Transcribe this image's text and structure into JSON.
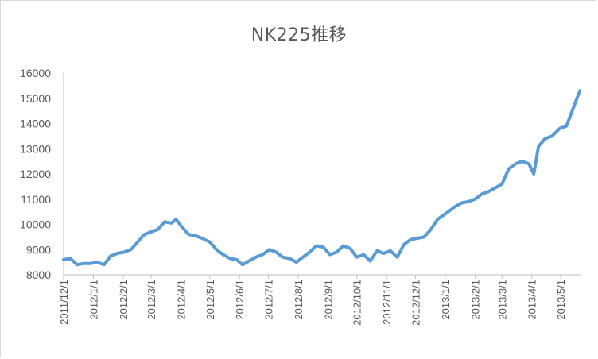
{
  "chart_data": {
    "type": "line",
    "title": "NK225推移",
    "xlabel": "",
    "ylabel": "",
    "ylim": [
      8000,
      16000
    ],
    "yticks": [
      "8000",
      "9000",
      "10000",
      "11000",
      "12000",
      "13000",
      "14000",
      "15000",
      "16000"
    ],
    "xticks": [
      "2011/12/1",
      "2012/1/1",
      "2012/2/1",
      "2012/3/1",
      "2012/4/1",
      "2012/5/1",
      "2012/6/1",
      "2012/7/1",
      "2012/8/1",
      "2012/9/1",
      "2012/10/1",
      "2012/11/1",
      "2012/12/1",
      "2013/1/1",
      "2013/2/1",
      "2013/3/1",
      "2013/4/1",
      "2013/5/1"
    ],
    "grid": false,
    "legend": "none",
    "line_color": "#5b9bd5",
    "series": [
      {
        "x": [
          "2011/12/1",
          "2011/12/8",
          "2011/12/15",
          "2011/12/22",
          "2011/12/29",
          "2012/1/5",
          "2012/1/12",
          "2012/1/19",
          "2012/1/26",
          "2012/2/2",
          "2012/2/9",
          "2012/2/16",
          "2012/2/23",
          "2012/3/1",
          "2012/3/8",
          "2012/3/15",
          "2012/3/22",
          "2012/3/27",
          "2012/4/2",
          "2012/4/9",
          "2012/4/16",
          "2012/4/23",
          "2012/5/1",
          "2012/5/8",
          "2012/5/15",
          "2012/5/22",
          "2012/5/29",
          "2012/6/4",
          "2012/6/11",
          "2012/6/18",
          "2012/6/25",
          "2012/7/2",
          "2012/7/9",
          "2012/7/16",
          "2012/7/23",
          "2012/7/30",
          "2012/8/6",
          "2012/8/13",
          "2012/8/20",
          "2012/8/27",
          "2012/9/3",
          "2012/9/10",
          "2012/9/17",
          "2012/9/24",
          "2012/10/1",
          "2012/10/8",
          "2012/10/15",
          "2012/10/22",
          "2012/10/29",
          "2012/11/5",
          "2012/11/12",
          "2012/11/19",
          "2012/11/26",
          "2012/12/3",
          "2012/12/10",
          "2012/12/17",
          "2012/12/24",
          "2013/1/4",
          "2013/1/11",
          "2013/1/18",
          "2013/1/25",
          "2013/2/1",
          "2013/2/8",
          "2013/2/15",
          "2013/2/22",
          "2013/3/1",
          "2013/3/8",
          "2013/3/15",
          "2013/3/22",
          "2013/3/29",
          "2013/4/3",
          "2013/4/8",
          "2013/4/15",
          "2013/4/22",
          "2013/4/30",
          "2013/5/7",
          "2013/5/14",
          "2013/5/21"
        ],
        "values": [
          8600,
          8650,
          8400,
          8450,
          8450,
          8500,
          8400,
          8750,
          8850,
          8900,
          9000,
          9300,
          9600,
          9700,
          9800,
          10100,
          10050,
          10200,
          9900,
          9600,
          9550,
          9450,
          9300,
          9000,
          8800,
          8650,
          8600,
          8400,
          8550,
          8700,
          8800,
          9000,
          8900,
          8700,
          8650,
          8500,
          8700,
          8900,
          9150,
          9100,
          8800,
          8900,
          9150,
          9050,
          8700,
          8800,
          8550,
          8950,
          8850,
          8950,
          8700,
          9200,
          9400,
          9450,
          9500,
          9800,
          10200,
          10500,
          10700,
          10850,
          10900,
          11000,
          11200,
          11300,
          11450,
          11600,
          12200,
          12400,
          12500,
          12400,
          12000,
          13100,
          13400,
          13500,
          13800,
          13900,
          14600,
          15300
        ]
      }
    ]
  }
}
